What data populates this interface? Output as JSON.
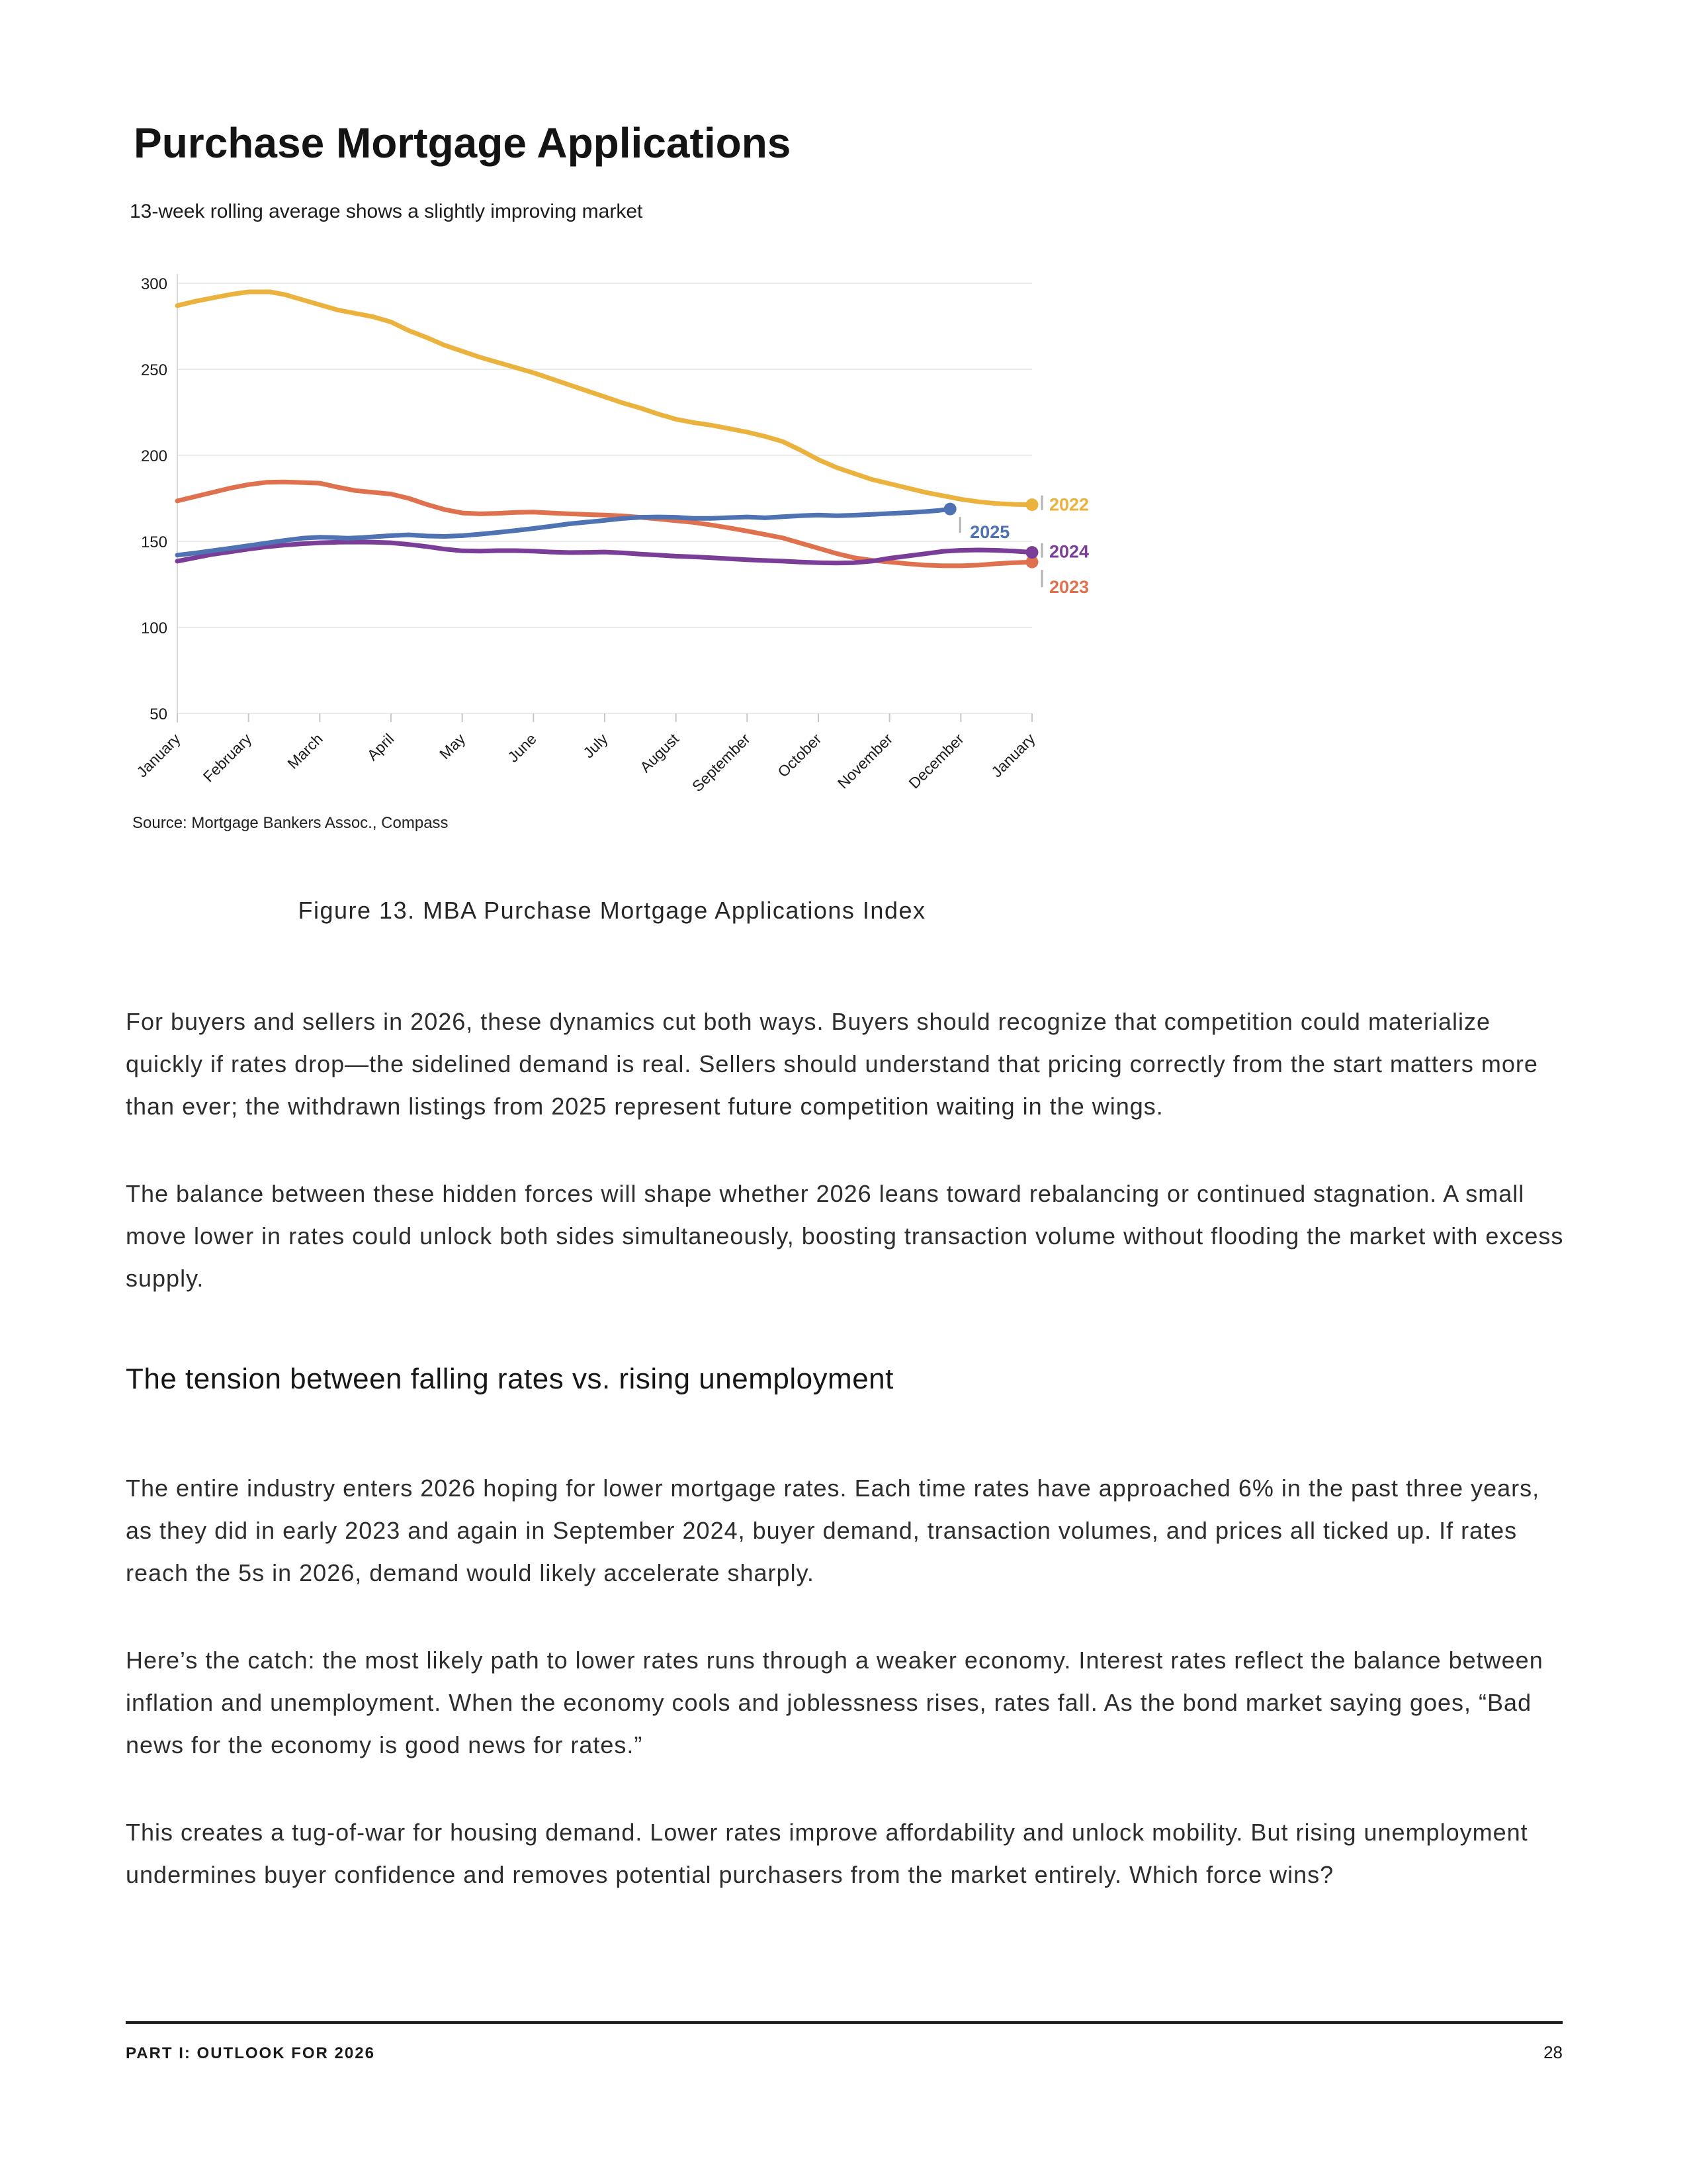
{
  "title": "Purchase Mortgage Applications",
  "subtitle": "13-week rolling average shows a slightly improving market",
  "figure_caption": "Figure 13. MBA Purchase Mortgage Applications Index",
  "section_heading": "The tension between falling rates vs. rising unemployment",
  "paragraphs": [
    "For buyers and sellers in 2026, these dynamics cut both ways. Buyers should recognize that competition could materialize quickly if rates drop—the sidelined demand is real. Sellers should understand that pricing correctly from the start matters more than ever; the withdrawn listings from 2025 represent future competition waiting in the wings.",
    "The balance between these hidden forces will shape whether 2026 leans toward rebalancing or continued stagnation. A small move lower in rates could unlock both sides simultaneously, boosting transaction volume without flooding the market with excess supply.",
    "The entire industry enters 2026 hoping for lower mortgage rates. Each time rates have approached 6% in the past three years, as they did in early 2023 and again in September 2024, buyer demand, transaction volumes, and prices all ticked up. If rates reach the 5s in 2026, demand would likely accelerate sharply.",
    "Here’s the catch: the most likely path to lower rates runs through a weaker economy. Interest rates reflect the balance between inflation and unemployment. When the economy cools and joblessness rises, rates fall. As the bond market saying goes, “Bad news for the economy is good news for rates.”",
    "This creates a tug-of-war for housing demand. Lower rates improve affordability and unlock mobility. But rising unemployment undermines buyer confidence and removes potential purchasers from the market entirely. Which force wins?"
  ],
  "footer": {
    "left": "PART I: OUTLOOK FOR 2026",
    "page_number": "28"
  },
  "chart_data": {
    "type": "line",
    "title": "Purchase Mortgage Applications",
    "subtitle": "13-week rolling average shows a slightly improving market",
    "source": "Source: Mortgage Bankers Assoc., Compass",
    "xlabel": "",
    "ylabel": "",
    "x_unit": "month (0 = January, 12 = following January)",
    "x_tick_labels": [
      "January",
      "February",
      "March",
      "April",
      "May",
      "June",
      "July",
      "August",
      "September",
      "October",
      "November",
      "December",
      "January"
    ],
    "y_ticks": [
      300,
      250,
      200,
      150,
      100,
      50
    ],
    "ylim": [
      50,
      300
    ],
    "grid": "horizontal",
    "legend_position": "end-of-line labels at right",
    "grid_color": "#ebebeb",
    "axis_color": "#d9d9d9",
    "connector_color": "#b3b3b3",
    "series": [
      {
        "name": "2022",
        "color": "#EBB23E",
        "points": [
          [
            0,
            287
          ],
          [
            0.25,
            289.5
          ],
          [
            0.5,
            291.5
          ],
          [
            0.75,
            293.5
          ],
          [
            1,
            295
          ],
          [
            1.3,
            295
          ],
          [
            1.5,
            293.5
          ],
          [
            1.75,
            290.5
          ],
          [
            2,
            287.5
          ],
          [
            2.25,
            284.5
          ],
          [
            2.5,
            282.5
          ],
          [
            2.75,
            280.5
          ],
          [
            3,
            277.5
          ],
          [
            3.25,
            272.5
          ],
          [
            3.5,
            268.5
          ],
          [
            3.75,
            264
          ],
          [
            4,
            260.5
          ],
          [
            4.25,
            257
          ],
          [
            4.5,
            254
          ],
          [
            4.75,
            251
          ],
          [
            5,
            248
          ],
          [
            5.25,
            244.5
          ],
          [
            5.5,
            241
          ],
          [
            5.75,
            237.5
          ],
          [
            6,
            234
          ],
          [
            6.25,
            230.5
          ],
          [
            6.5,
            227.5
          ],
          [
            6.75,
            224
          ],
          [
            7,
            221
          ],
          [
            7.25,
            219
          ],
          [
            7.5,
            217.5
          ],
          [
            7.75,
            215.5
          ],
          [
            8,
            213.5
          ],
          [
            8.25,
            211
          ],
          [
            8.5,
            208
          ],
          [
            8.75,
            203
          ],
          [
            9,
            197.5
          ],
          [
            9.25,
            193
          ],
          [
            9.5,
            189.5
          ],
          [
            9.75,
            186
          ],
          [
            10,
            183.5
          ],
          [
            10.25,
            181
          ],
          [
            10.5,
            178.5
          ],
          [
            10.75,
            176.5
          ],
          [
            11,
            174.5
          ],
          [
            11.25,
            173
          ],
          [
            11.5,
            172
          ],
          [
            11.75,
            171.5
          ],
          [
            12,
            171.3
          ]
        ]
      },
      {
        "name": "2023",
        "color": "#E0714E",
        "points": [
          [
            0,
            173.5
          ],
          [
            0.25,
            176
          ],
          [
            0.5,
            178.5
          ],
          [
            0.75,
            181
          ],
          [
            1,
            183
          ],
          [
            1.25,
            184.3
          ],
          [
            1.5,
            184.5
          ],
          [
            1.75,
            184.2
          ],
          [
            2,
            183.8
          ],
          [
            2.25,
            181.5
          ],
          [
            2.5,
            179.5
          ],
          [
            2.75,
            178.5
          ],
          [
            3,
            177.5
          ],
          [
            3.25,
            175
          ],
          [
            3.5,
            171.5
          ],
          [
            3.75,
            168.5
          ],
          [
            4,
            166.5
          ],
          [
            4.25,
            166
          ],
          [
            4.5,
            166.3
          ],
          [
            4.75,
            166.8
          ],
          [
            5,
            167
          ],
          [
            5.25,
            166.5
          ],
          [
            5.5,
            166
          ],
          [
            5.75,
            165.6
          ],
          [
            6,
            165.3
          ],
          [
            6.25,
            164.8
          ],
          [
            6.5,
            164
          ],
          [
            6.75,
            163
          ],
          [
            7,
            162
          ],
          [
            7.25,
            161
          ],
          [
            7.5,
            159.5
          ],
          [
            7.75,
            157.8
          ],
          [
            8,
            156
          ],
          [
            8.25,
            154
          ],
          [
            8.5,
            152
          ],
          [
            8.75,
            149
          ],
          [
            9,
            146
          ],
          [
            9.25,
            143
          ],
          [
            9.5,
            140.5
          ],
          [
            9.75,
            139
          ],
          [
            10,
            138
          ],
          [
            10.25,
            137
          ],
          [
            10.5,
            136.2
          ],
          [
            10.75,
            135.8
          ],
          [
            11,
            135.8
          ],
          [
            11.25,
            136.2
          ],
          [
            11.5,
            137
          ],
          [
            11.75,
            137.6
          ],
          [
            12,
            138
          ]
        ]
      },
      {
        "name": "2024",
        "color": "#7B3E98",
        "points": [
          [
            0,
            138.5
          ],
          [
            0.25,
            140.5
          ],
          [
            0.5,
            142.5
          ],
          [
            0.75,
            144
          ],
          [
            1,
            145.5
          ],
          [
            1.25,
            146.8
          ],
          [
            1.5,
            147.8
          ],
          [
            1.75,
            148.6
          ],
          [
            2,
            149.2
          ],
          [
            2.25,
            149.5
          ],
          [
            2.5,
            149.6
          ],
          [
            2.75,
            149.5
          ],
          [
            3,
            149.2
          ],
          [
            3.25,
            148.2
          ],
          [
            3.5,
            147
          ],
          [
            3.75,
            145.5
          ],
          [
            4,
            144.5
          ],
          [
            4.25,
            144.3
          ],
          [
            4.5,
            144.6
          ],
          [
            4.75,
            144.6
          ],
          [
            5,
            144.3
          ],
          [
            5.25,
            143.8
          ],
          [
            5.5,
            143.5
          ],
          [
            5.75,
            143.6
          ],
          [
            6,
            143.8
          ],
          [
            6.25,
            143.3
          ],
          [
            6.5,
            142.6
          ],
          [
            6.75,
            142
          ],
          [
            7,
            141.4
          ],
          [
            7.25,
            141
          ],
          [
            7.5,
            140.5
          ],
          [
            7.75,
            139.9
          ],
          [
            8,
            139.3
          ],
          [
            8.25,
            138.9
          ],
          [
            8.5,
            138.5
          ],
          [
            8.75,
            138
          ],
          [
            9,
            137.6
          ],
          [
            9.25,
            137.4
          ],
          [
            9.5,
            137.6
          ],
          [
            9.75,
            138.5
          ],
          [
            10,
            140.2
          ],
          [
            10.25,
            141.5
          ],
          [
            10.5,
            142.8
          ],
          [
            10.75,
            144.2
          ],
          [
            11,
            144.8
          ],
          [
            11.25,
            145
          ],
          [
            11.5,
            144.8
          ],
          [
            11.75,
            144.3
          ],
          [
            12,
            143.6
          ]
        ]
      },
      {
        "name": "2025",
        "color": "#4E72B2",
        "points": [
          [
            0,
            142
          ],
          [
            0.25,
            143.2
          ],
          [
            0.5,
            144.6
          ],
          [
            0.75,
            146
          ],
          [
            1,
            147.5
          ],
          [
            1.25,
            149
          ],
          [
            1.5,
            150.5
          ],
          [
            1.75,
            151.8
          ],
          [
            2,
            152.4
          ],
          [
            2.2,
            152.2
          ],
          [
            2.4,
            151.8
          ],
          [
            2.6,
            152.2
          ],
          [
            2.8,
            152.8
          ],
          [
            3,
            153.3
          ],
          [
            3.25,
            153.8
          ],
          [
            3.5,
            153.1
          ],
          [
            3.75,
            152.9
          ],
          [
            4,
            153.3
          ],
          [
            4.25,
            154.2
          ],
          [
            4.5,
            155.2
          ],
          [
            4.75,
            156.3
          ],
          [
            5,
            157.5
          ],
          [
            5.25,
            158.8
          ],
          [
            5.5,
            160.2
          ],
          [
            5.75,
            161.2
          ],
          [
            6,
            162.2
          ],
          [
            6.25,
            163.3
          ],
          [
            6.5,
            164
          ],
          [
            6.75,
            164.2
          ],
          [
            7,
            164
          ],
          [
            7.25,
            163.4
          ],
          [
            7.5,
            163.4
          ],
          [
            7.75,
            163.8
          ],
          [
            8,
            164.2
          ],
          [
            8.25,
            163.7
          ],
          [
            8.5,
            164.3
          ],
          [
            8.75,
            164.9
          ],
          [
            9,
            165.3
          ],
          [
            9.25,
            164.9
          ],
          [
            9.5,
            165.2
          ],
          [
            9.75,
            165.7
          ],
          [
            10,
            166.2
          ],
          [
            10.25,
            166.7
          ],
          [
            10.5,
            167.3
          ],
          [
            10.7,
            168
          ],
          [
            10.85,
            168.8
          ]
        ]
      }
    ]
  }
}
